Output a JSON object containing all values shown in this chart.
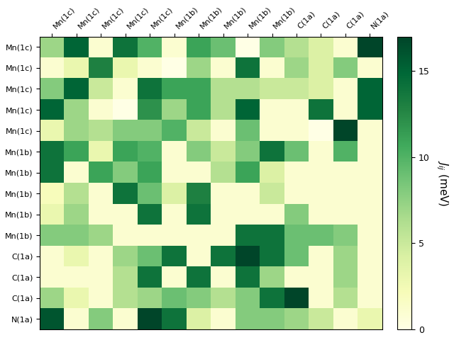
{
  "row_labels": [
    "Mn(1c)",
    "Mn(1c)",
    "Mn(1c)",
    "Mn(1c)",
    "Mn(1c)",
    "Mn(1b)",
    "Mn(1b)",
    "Mn(1b)",
    "Mn(1b)",
    "Mn(1b)",
    "C(1a)",
    "C(1a)",
    "C(1a)",
    "N(1a)"
  ],
  "col_labels": [
    "Mn(1c)",
    "Mn(1c)",
    "Mn(1c)",
    "Mn(1c)",
    "Mn(1c)",
    "Mn(1b)",
    "Mn(1b)",
    "Mn(1b)",
    "Mn(1b)",
    "Mn(1b)",
    "C(1a)",
    "C(1a)",
    "C(1a)",
    "N(1a)"
  ],
  "matrix": [
    [
      7,
      15,
      1,
      14,
      10,
      1,
      11,
      9,
      0,
      8,
      6,
      4,
      1,
      17
    ],
    [
      1,
      3,
      13,
      3,
      1,
      0,
      7,
      1,
      14,
      1,
      7,
      4,
      8,
      1
    ],
    [
      8,
      15,
      5,
      1,
      14,
      11,
      11,
      6,
      6,
      5,
      5,
      4,
      1,
      15
    ],
    [
      15,
      7,
      1,
      0,
      12,
      7,
      11,
      6,
      15,
      1,
      1,
      14,
      1,
      15
    ],
    [
      3,
      7,
      6,
      8,
      8,
      10,
      5,
      1,
      9,
      1,
      1,
      0,
      17,
      1
    ],
    [
      14,
      11,
      3,
      11,
      10,
      1,
      8,
      5,
      8,
      14,
      9,
      1,
      10,
      1
    ],
    [
      14,
      1,
      11,
      8,
      11,
      1,
      1,
      6,
      11,
      4,
      1,
      1,
      1,
      1
    ],
    [
      2,
      6,
      1,
      14,
      9,
      4,
      13,
      1,
      1,
      5,
      1,
      1,
      1,
      1
    ],
    [
      3,
      7,
      1,
      1,
      14,
      1,
      14,
      1,
      1,
      1,
      8,
      1,
      1,
      1
    ],
    [
      8,
      8,
      7,
      1,
      1,
      1,
      1,
      1,
      14,
      14,
      9,
      9,
      8,
      1
    ],
    [
      1,
      3,
      1,
      7,
      9,
      14,
      1,
      14,
      17,
      14,
      9,
      1,
      7,
      1
    ],
    [
      1,
      1,
      1,
      6,
      14,
      1,
      14,
      1,
      14,
      7,
      1,
      1,
      7,
      1
    ],
    [
      7,
      3,
      1,
      6,
      7,
      9,
      8,
      6,
      8,
      14,
      17,
      1,
      6,
      1
    ],
    [
      16,
      1,
      8,
      1,
      17,
      14,
      4,
      1,
      8,
      8,
      7,
      5,
      1,
      3
    ]
  ],
  "vmin": 0,
  "vmax": 17,
  "cmap": "YlGn",
  "colorbar_label": "$J_{ij}$ (meV)",
  "colorbar_ticks": [
    0,
    5,
    10,
    15
  ],
  "figsize": [
    6.4,
    4.8
  ],
  "dpi": 100
}
